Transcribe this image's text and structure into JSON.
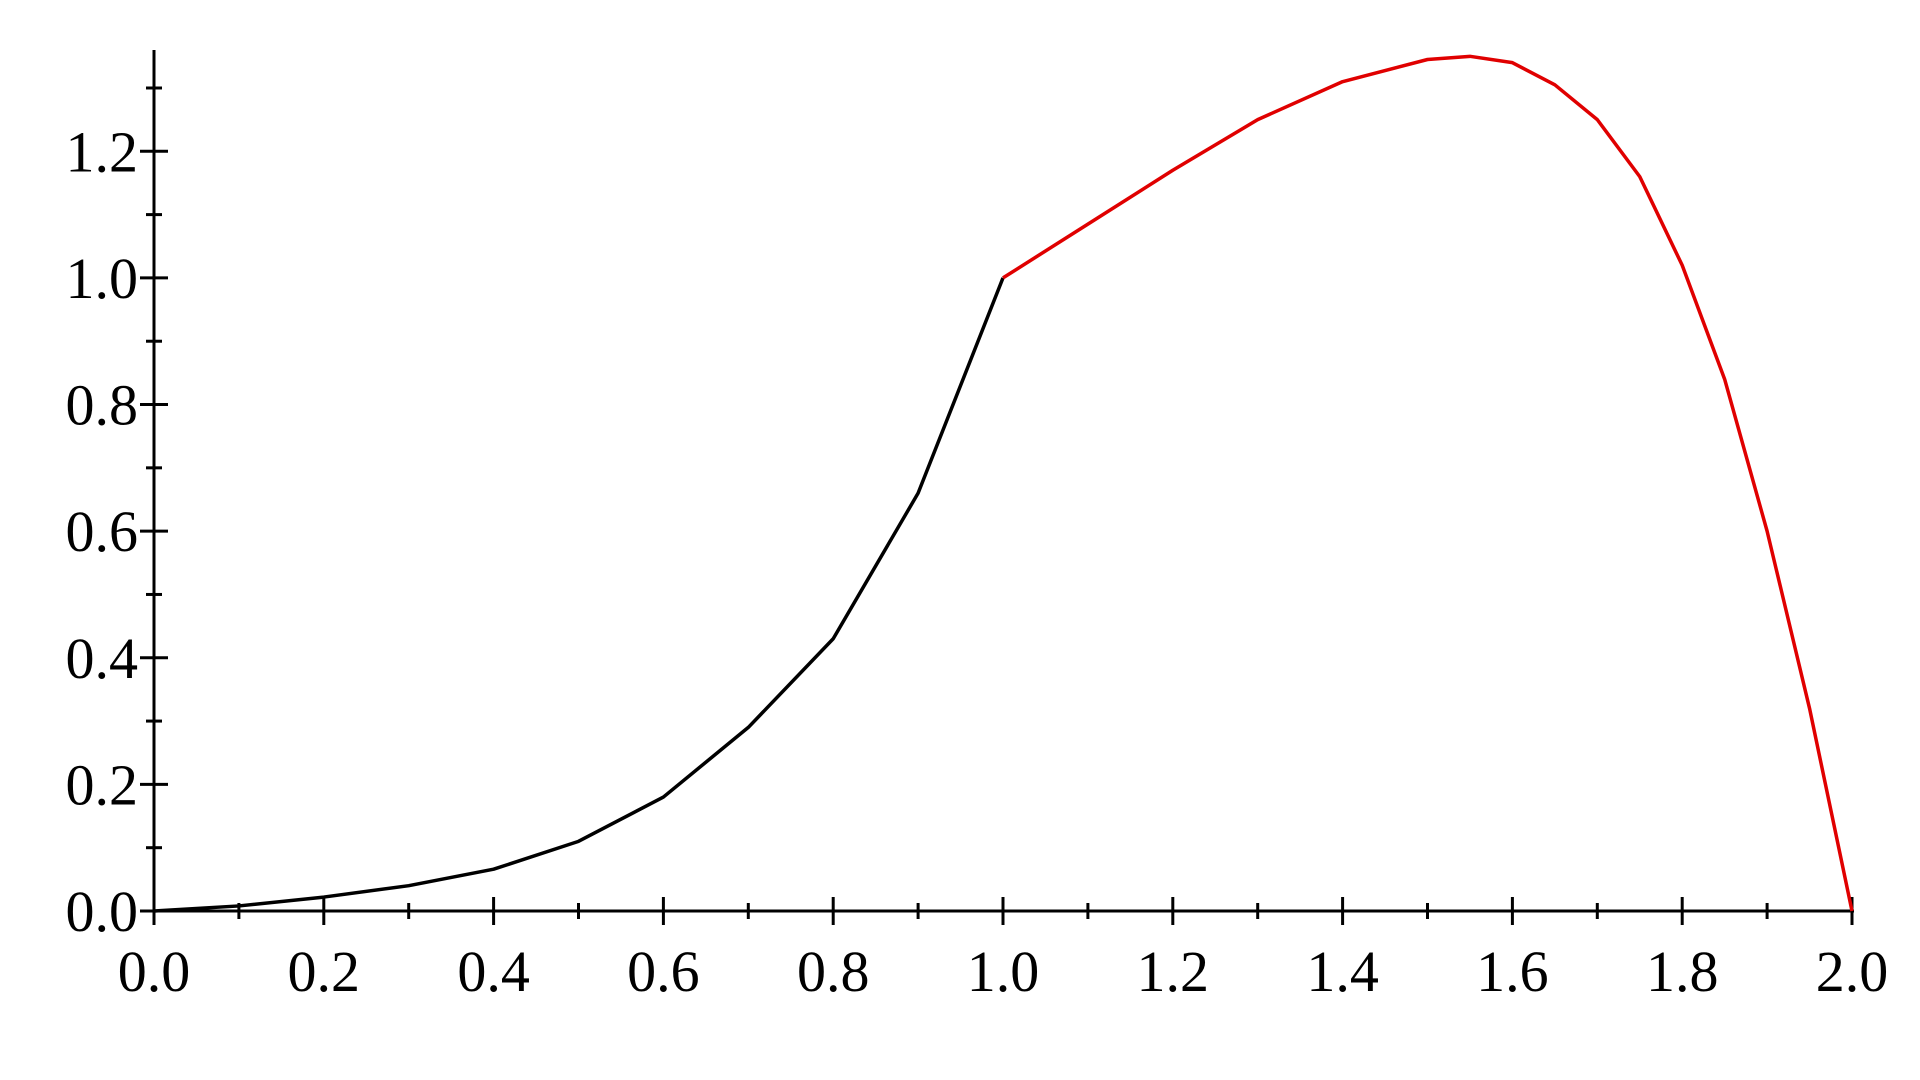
{
  "chart_data": {
    "type": "line",
    "xlim": [
      0,
      2
    ],
    "ylim": [
      0,
      1.36
    ],
    "xticks": [
      {
        "value": 0,
        "label": "0.0"
      },
      0.2,
      0.4,
      0.6,
      0.8,
      {
        "value": 1,
        "label": "1.0"
      },
      1.2,
      1.4,
      1.6,
      1.8,
      {
        "value": 2,
        "label": "2.0"
      }
    ],
    "yticks": [
      {
        "value": 0,
        "label": "0.0"
      },
      0.2,
      0.4,
      0.6,
      0.8,
      {
        "value": 1,
        "label": "1.0"
      },
      1.2
    ],
    "series": [
      {
        "color": "#000000",
        "x": [
          0,
          0.1,
          0.2,
          0.3,
          0.4,
          0.5,
          0.6,
          0.7,
          0.8,
          0.9,
          1.0
        ],
        "values": [
          0,
          0.008,
          0.022,
          0.04,
          0.066,
          0.11,
          0.18,
          0.29,
          0.43,
          0.66,
          1.0
        ]
      },
      {
        "color": "#e00000",
        "x": [
          1.0,
          1.1,
          1.2,
          1.3,
          1.4,
          1.5,
          1.55,
          1.6,
          1.65,
          1.7,
          1.75,
          1.8,
          1.85,
          1.9,
          1.95,
          2.0
        ],
        "values": [
          1.0,
          1.085,
          1.17,
          1.25,
          1.31,
          1.345,
          1.35,
          1.34,
          1.305,
          1.25,
          1.16,
          1.02,
          0.84,
          0.6,
          0.32,
          0.0
        ]
      }
    ]
  }
}
